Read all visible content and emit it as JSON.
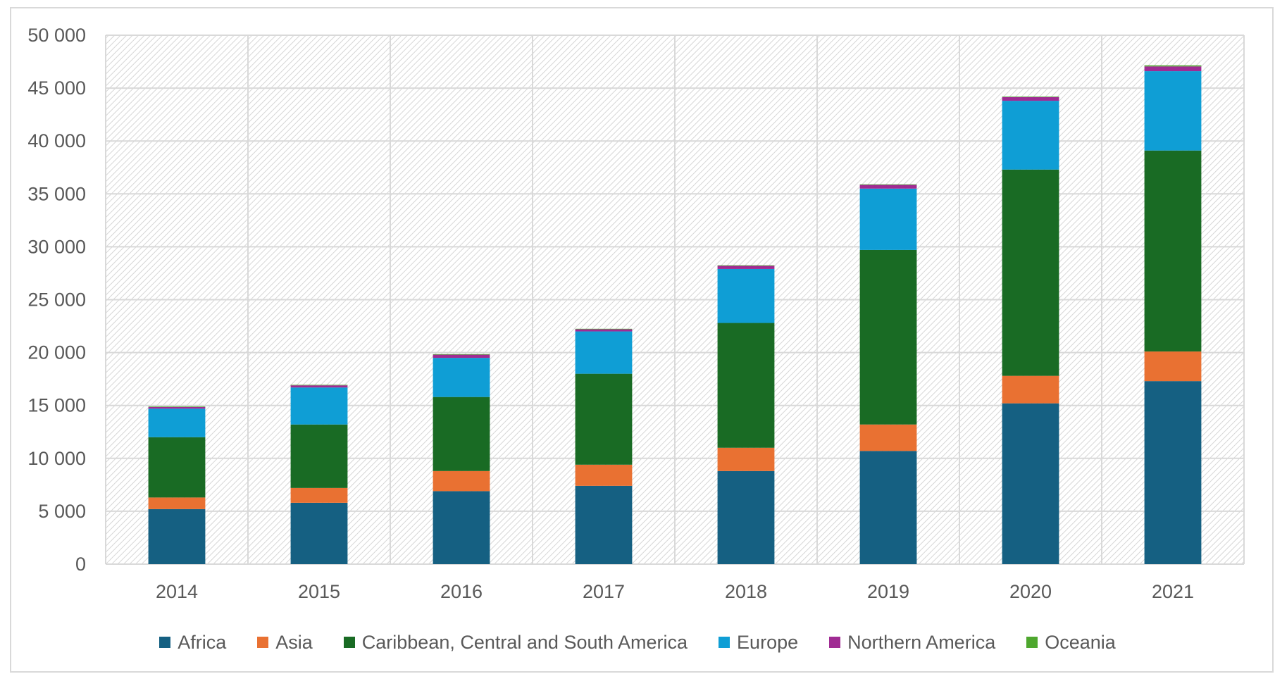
{
  "chart_data": {
    "type": "bar",
    "stacked": true,
    "title": "",
    "xlabel": "",
    "ylabel": "",
    "categories": [
      "2014",
      "2015",
      "2016",
      "2017",
      "2018",
      "2019",
      "2020",
      "2021"
    ],
    "ylim": [
      0,
      50000
    ],
    "yticks": [
      0,
      5000,
      10000,
      15000,
      20000,
      25000,
      30000,
      35000,
      40000,
      45000,
      50000
    ],
    "ytick_labels": [
      "0",
      "5 000",
      "10 000",
      "15 000",
      "20 000",
      "25 000",
      "30 000",
      "35 000",
      "40 000",
      "45 000",
      "50 000"
    ],
    "grid": true,
    "legend_position": "bottom",
    "series": [
      {
        "name": "Africa",
        "color": "#156082",
        "values": [
          5200,
          5800,
          6900,
          7400,
          8800,
          10700,
          15200,
          17300
        ]
      },
      {
        "name": "Asia",
        "color": "#E97132",
        "values": [
          1100,
          1400,
          1900,
          2000,
          2200,
          2500,
          2600,
          2800
        ]
      },
      {
        "name": "Caribbean, Central and South America",
        "color": "#196B24",
        "values": [
          5700,
          6000,
          7000,
          8600,
          11800,
          16500,
          19500,
          19000
        ]
      },
      {
        "name": "Europe",
        "color": "#0F9ED5",
        "values": [
          2700,
          3500,
          3700,
          4000,
          5100,
          5800,
          6500,
          7500
        ]
      },
      {
        "name": "Northern America",
        "color": "#A02B93",
        "values": [
          150,
          200,
          300,
          200,
          300,
          350,
          350,
          450
        ]
      },
      {
        "name": "Oceania",
        "color": "#4EA72E",
        "values": [
          50,
          50,
          50,
          50,
          50,
          50,
          50,
          100
        ]
      }
    ]
  }
}
